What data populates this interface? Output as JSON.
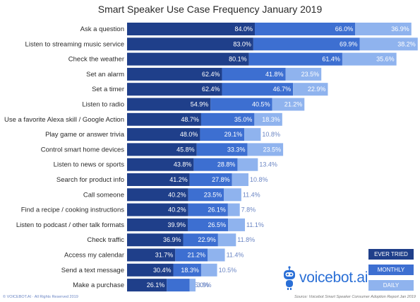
{
  "chart_data": {
    "type": "bar",
    "stacked": true,
    "orientation": "horizontal",
    "title": "Smart Speaker Use Case Frequency January 2019",
    "categories": [
      "Ask a question",
      "Listen to streaming music service",
      "Check the weather",
      "Set an alarm",
      "Set a timer",
      "Listen to radio",
      "Use a favorite Alexa skill / Google Action",
      "Play game or answer trivia",
      "Control smart home devices",
      "Listen to news or sports",
      "Search for product info",
      "Call someone",
      "Find a recipe / cooking instructions",
      "Listen to podcast / other talk formats",
      "Check traffic",
      "Access my calendar",
      "Send a text message",
      "Make a purchase"
    ],
    "series": [
      {
        "name": "EVER TRIED",
        "color": "#1f3f8a",
        "values": [
          84.0,
          83.0,
          80.1,
          62.4,
          62.4,
          54.9,
          48.7,
          48.0,
          45.8,
          43.8,
          41.2,
          40.2,
          40.2,
          39.9,
          36.9,
          31.7,
          30.4,
          26.1
        ],
        "labels": [
          "84.0%",
          "83.0%",
          "80.1%",
          "62.4%",
          "62.4%",
          "54.9%",
          "48.7%",
          "48.0%",
          "45.8%",
          "43.8%",
          "41.2%",
          "40.2%",
          "40.2%",
          "39.9%",
          "36.9%",
          "31.7%",
          "30.4%",
          "26.1%"
        ]
      },
      {
        "name": "MONTHLY",
        "color": "#3d6fd1",
        "values": [
          66.0,
          69.9,
          61.4,
          41.8,
          46.7,
          40.5,
          35.0,
          29.1,
          33.3,
          28.8,
          27.8,
          23.5,
          26.1,
          26.5,
          22.9,
          21.2,
          18.3,
          15.0
        ],
        "labels": [
          "66.0%",
          "69.9%",
          "61.4%",
          "41.8%",
          "46.7%",
          "40.5%",
          "35.0%",
          "29.1%",
          "33.3%",
          "28.8%",
          "27.8%",
          "23.5%",
          "26.1%",
          "26.5%",
          "22.9%",
          "21.2%",
          "18.3%",
          "15.0%"
        ]
      },
      {
        "name": "DAILY",
        "color": "#8fb3ee",
        "values": [
          36.9,
          38.2,
          35.6,
          23.5,
          22.9,
          21.2,
          18.3,
          10.8,
          23.5,
          13.4,
          10.8,
          11.4,
          7.8,
          11.1,
          11.8,
          11.4,
          10.5,
          3.9
        ],
        "labels": [
          "36.9%",
          "38.2%",
          "35.6%",
          "23.5%",
          "22.9%",
          "21.2%",
          "18.3%",
          "10.8%",
          "23.5%",
          "13.4%",
          "10.8%",
          "11.4%",
          "7.8%",
          "11.1%",
          "11.8%",
          "11.4%",
          "10.5%",
          "3.9%"
        ]
      }
    ],
    "legend_position": "bottom-right",
    "grid": false
  },
  "legend": {
    "ever": "EVER TRIED",
    "monthly": "MONTHLY",
    "daily": "DAILY"
  },
  "brand": {
    "name": "voicebot",
    "suffix": ".ai"
  },
  "footer": {
    "copyright": "© VOICEBOT.AI · All Rights Reserved 2019",
    "source": "Source: Voicebot Smart Speaker Consumer Adoption Report Jan 2019"
  },
  "colors": {
    "ever": "#1f3f8a",
    "monthly": "#3d6fd1",
    "daily": "#8fb3ee",
    "brand": "#2a6fd6"
  }
}
